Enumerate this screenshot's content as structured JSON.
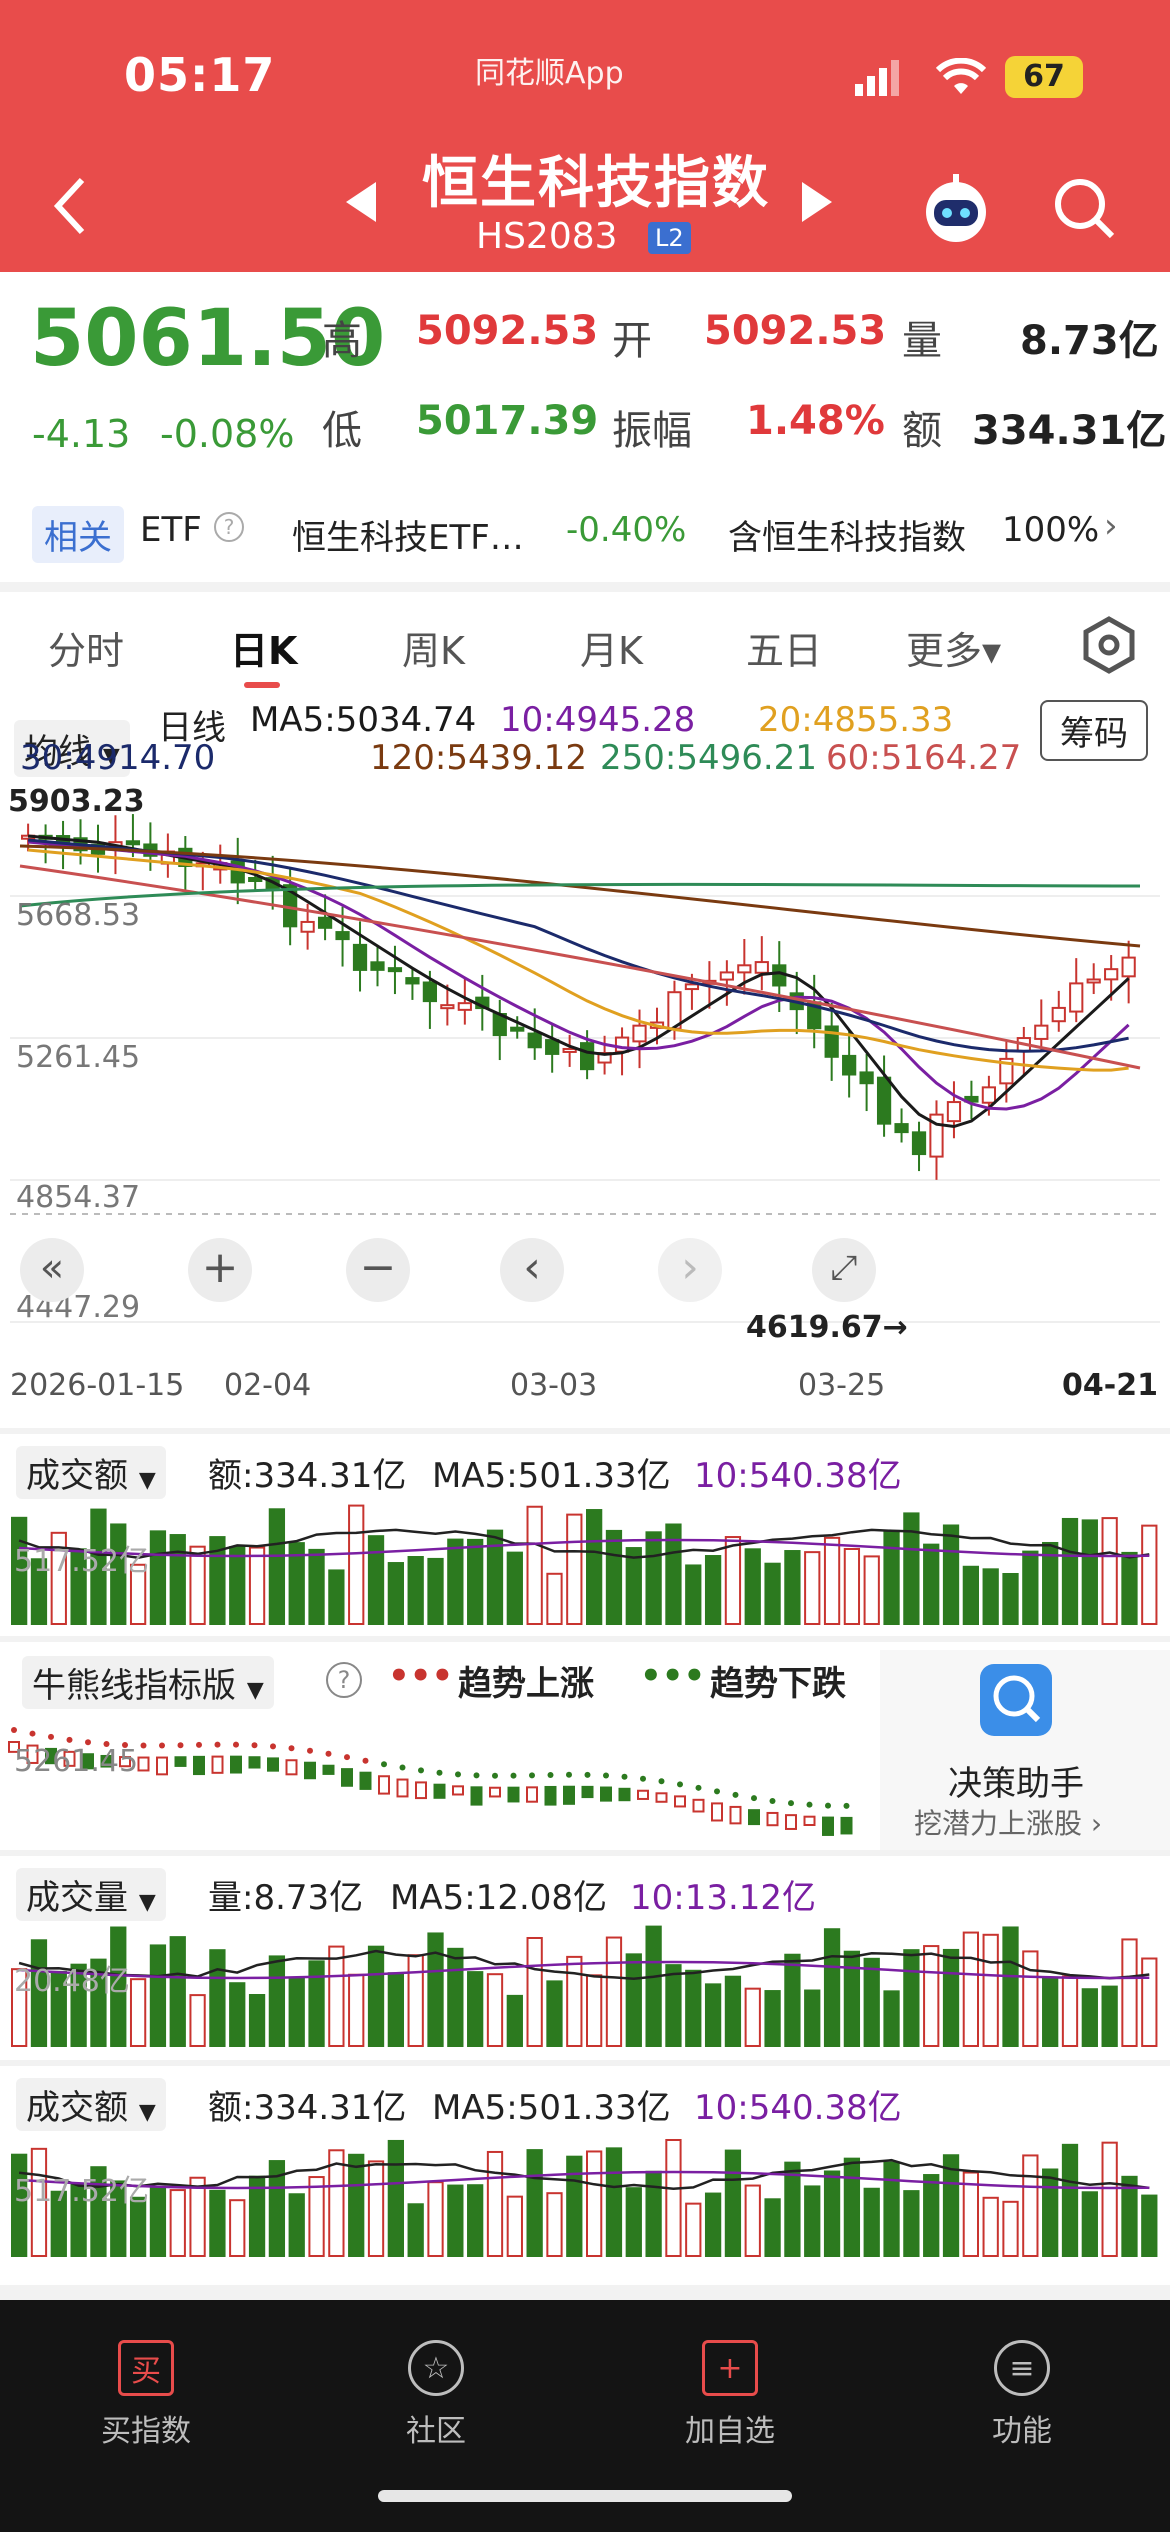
{
  "status_bar": {
    "time": "05:17",
    "carrier": "同花顺App",
    "battery": "67"
  },
  "header": {
    "title": "恒生科技指数",
    "code": "HS2083",
    "level_tag": "L2"
  },
  "quote": {
    "price": "5061.50",
    "change": "-4.13",
    "change_pct": "-0.08%",
    "high_label": "高",
    "high": "5092.53",
    "open_label": "开",
    "open": "5092.53",
    "volume_label": "量",
    "volume": "8.73亿",
    "low_label": "低",
    "low": "5017.39",
    "amplitude_label": "振幅",
    "amplitude": "1.48%",
    "amount_label": "额",
    "amount": "334.31亿"
  },
  "related": {
    "tag": "相关",
    "type": "ETF",
    "etf_name": "恒生科技ETF…",
    "etf_change": "-0.40%",
    "holding_label": "含恒生科技指数",
    "holding_pct": "100%"
  },
  "tabs": [
    "分时",
    "日K",
    "周K",
    "月K",
    "五日",
    "更多▾"
  ],
  "kline": {
    "indicator_select": "均线",
    "period": "日线",
    "chips_button": "筹码",
    "ma_labels": [
      "MA5:5034.74",
      "10:4945.28",
      "20:4855.33",
      "30:4914.70",
      "120:5439.12",
      "250:5496.21",
      "60:5164.27"
    ],
    "price_axis": [
      "5903.23",
      "5668.53",
      "5261.45",
      "4854.37",
      "4447.29"
    ],
    "low_marker": "4619.67→",
    "dates": [
      "2026-01-15",
      "02-04",
      "03-03",
      "03-25",
      "04-21"
    ],
    "colors": {
      "up": "#c8342f",
      "down": "#2c7a1f",
      "ma5": "#1a1a1a",
      "ma10": "#7a1fa2",
      "ma20": "#e0a020",
      "ma30": "#1b2a6b",
      "ma60": "#c85050",
      "ma120": "#7a3a10",
      "ma250": "#2e8b57"
    }
  },
  "amount_panel": {
    "select": "成交额",
    "value": "额:334.31亿",
    "ma5": "MA5:501.33亿",
    "ma10": "10:540.38亿",
    "axis_label": "517.52亿"
  },
  "bull_bear": {
    "select": "牛熊线指标版",
    "help": "?",
    "up_label": "趋势上涨",
    "down_label": "趋势下跌",
    "axis_label": "5261.45",
    "assistant_title": "决策助手",
    "assistant_sub": "挖潜力上涨股 ›"
  },
  "volume_panel": {
    "select": "成交量",
    "value": "量:8.73亿",
    "ma5": "MA5:12.08亿",
    "ma10": "10:13.12亿",
    "axis_label": "20.48亿"
  },
  "amount_panel2": {
    "select": "成交额",
    "value": "额:334.31亿",
    "ma5": "MA5:501.33亿",
    "ma10": "10:540.38亿",
    "axis_label": "517.52亿"
  },
  "nav": [
    {
      "label": "买指数",
      "icon": "买"
    },
    {
      "label": "社区",
      "icon": "☆"
    },
    {
      "label": "加自选",
      "icon": "+"
    },
    {
      "label": "功能",
      "icon": "≡"
    }
  ]
}
